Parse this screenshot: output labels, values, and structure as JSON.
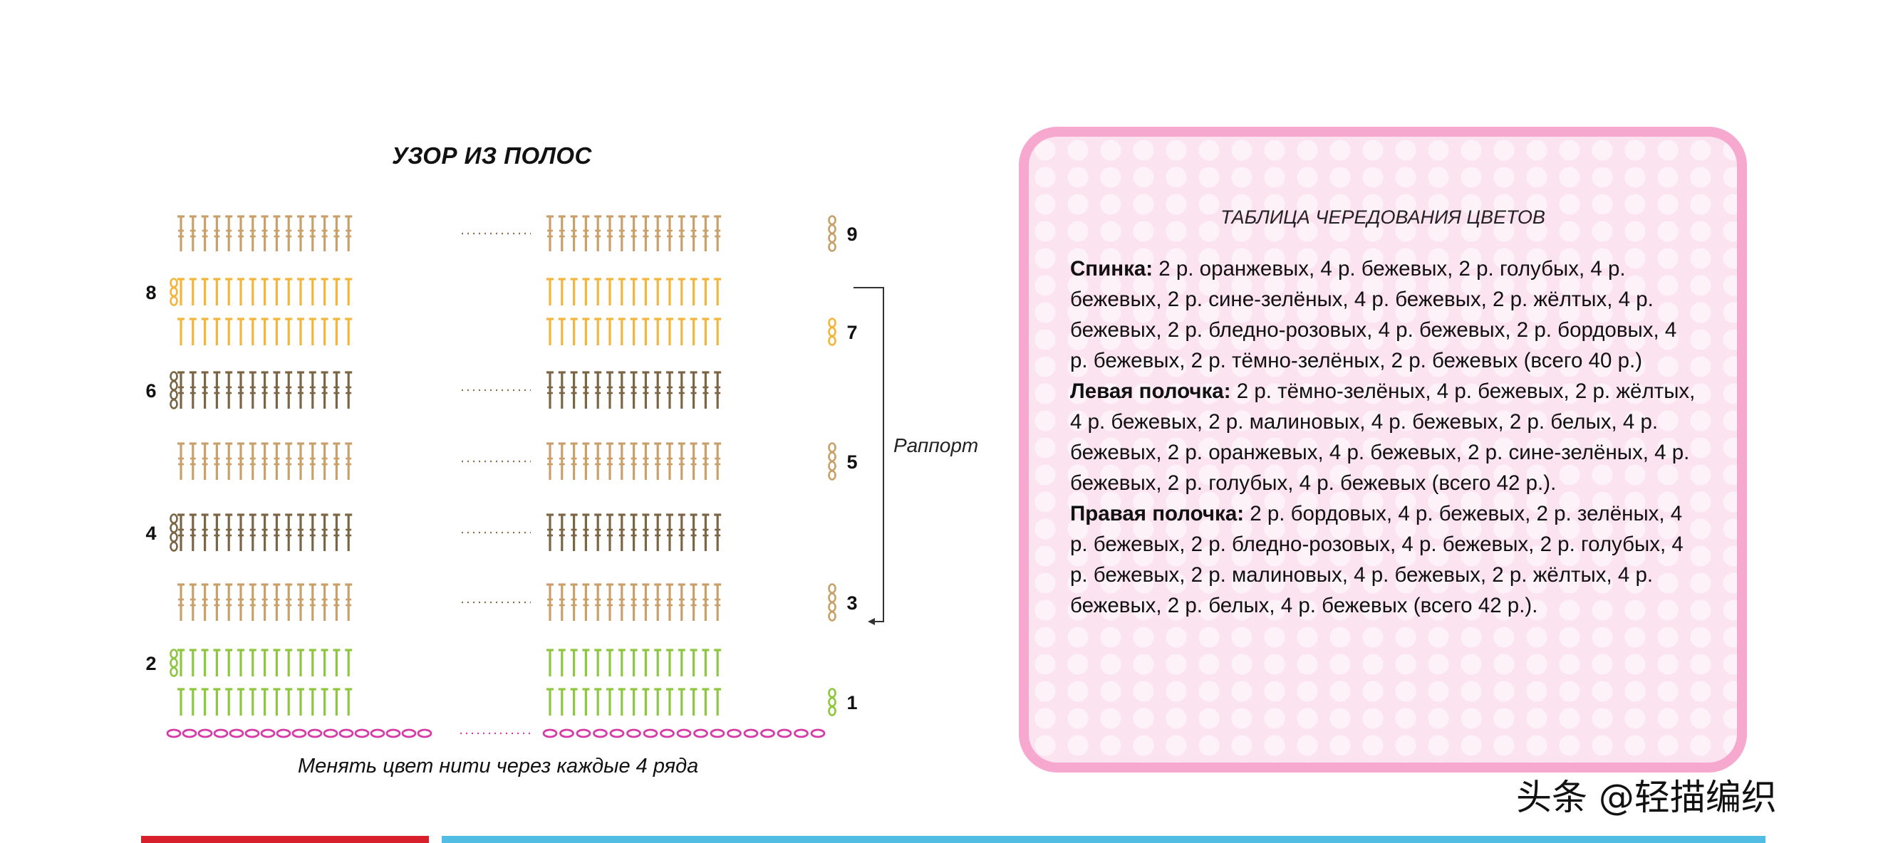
{
  "chart": {
    "title": "УЗОР ИЗ ПОЛОС",
    "caption": "Менять цвет нити через каждые 4 ряда",
    "repeat_label": "Раппорт",
    "row_numbers": [
      "1",
      "2",
      "3",
      "4",
      "5",
      "6",
      "7",
      "8",
      "9"
    ],
    "colors": {
      "green": "#8dc63f",
      "yellow": "#f3b53a",
      "beige": "#c9a06a",
      "brown": "#7b6545",
      "pink": "#d63ca7",
      "dots": "#8b6e4a"
    }
  },
  "table": {
    "title": "ТАБЛИЦА ЧЕРЕДОВАНИЯ ЦВЕТОВ",
    "sections": [
      {
        "label": "Спинка:",
        "text": " 2 р. оранжевых, 4 р. бежевых, 2 р. голубых, 4 р. бежевых, 2 р. сине-зелёных, 4 р. бежевых, 2 р. жёлтых, 4 р. бежевых, 2 р. бледно-розовых, 4 р. бежевых, 2 р. бордовых, 4 р. бежевых, 2 р. тёмно-зелёных, 2 р. бежевых (всего 40 р.)"
      },
      {
        "label": "Левая полочка:",
        "text": " 2 р. тёмно-зелёных, 4 р. бежевых, 2 р. жёлтых, 4 р. бежевых, 2 р. малиновых, 4 р. бежевых, 2 р. белых, 4 р. бежевых, 2 р. оранжевых, 4 р. бежевых, 2 р. сине-зелёных, 4 р. бежевых, 2 р. голубых, 4 р. бежевых (всего 42 р.)."
      },
      {
        "label": "Правая полочка:",
        "text": " 2 р. бордовых, 4 р. бежевых, 2 р. зелёных, 4 р. бежевых, 2 р. бледно-розовых, 4 р. бежевых, 2 р. голубых, 4 р. бежевых, 2 р. малиновых, 4 р. бежевых, 2 р. жёлтых, 4 р. бежевых, 2 р. белых, 4 р. бежевых (всего 42 р.)."
      }
    ]
  },
  "watermark": "头条 @轻描编织",
  "footer": {
    "bar_left_color": "#d8202c",
    "bar_right_color": "#52bde3"
  }
}
